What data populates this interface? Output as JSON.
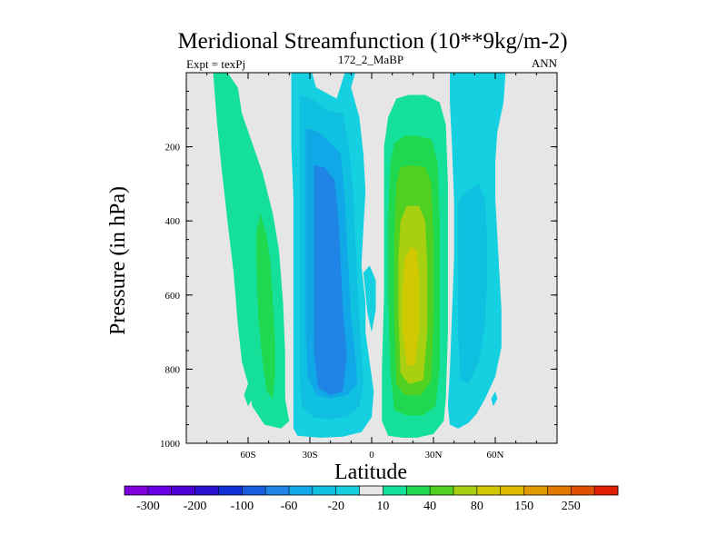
{
  "chart_data": {
    "type": "filled-contour",
    "title": "Meridional Streamfunction (10**9kg/m-2)",
    "subtitle_left": "Expt = texPj",
    "subtitle_center": "172_2_MaBP",
    "subtitle_right": "ANN",
    "xlabel": "Latitude",
    "ylabel": "Pressure (in hPa)",
    "xlim": [
      -90,
      90
    ],
    "ylim": [
      1000,
      0
    ],
    "x_ticks": [
      {
        "value": -60,
        "label": "60S"
      },
      {
        "value": -30,
        "label": "30S"
      },
      {
        "value": 0,
        "label": "0"
      },
      {
        "value": 30,
        "label": "30N"
      },
      {
        "value": 60,
        "label": "60N"
      }
    ],
    "y_ticks": [
      {
        "value": 200,
        "label": "200"
      },
      {
        "value": 400,
        "label": "400"
      },
      {
        "value": 600,
        "label": "600"
      },
      {
        "value": 800,
        "label": "800"
      },
      {
        "value": 1000,
        "label": "1000"
      }
    ],
    "background_color": "#e6e6e6",
    "colorbar": {
      "colors": [
        "#8000e0",
        "#6a00e6",
        "#4b00d6",
        "#2a10d0",
        "#1030d8",
        "#1a5ce0",
        "#1f84e6",
        "#10a8e6",
        "#10c0e0",
        "#14d0e0",
        "#e6e6e6",
        "#14e09a",
        "#20d850",
        "#50d020",
        "#a8d010",
        "#d0c800",
        "#e0b800",
        "#e09a00",
        "#e07800",
        "#e05000",
        "#e02000"
      ],
      "labels": [
        {
          "after_box": 1,
          "text": "-300"
        },
        {
          "after_box": 3,
          "text": "-200"
        },
        {
          "after_box": 5,
          "text": "-100"
        },
        {
          "after_box": 7,
          "text": "-60"
        },
        {
          "after_box": 9,
          "text": "-20"
        },
        {
          "after_box": 11,
          "text": "10"
        },
        {
          "after_box": 13,
          "text": "40"
        },
        {
          "after_box": 15,
          "text": "80"
        },
        {
          "after_box": 17,
          "text": "150"
        },
        {
          "after_box": 19,
          "text": "250"
        }
      ]
    },
    "contours": [
      {
        "level": "15",
        "color": "#14e09a",
        "points": [
          [
            -77,
            0
          ],
          [
            -70,
            0
          ],
          [
            -65,
            40
          ],
          [
            -63,
            110
          ],
          [
            -58,
            190
          ],
          [
            -53,
            270
          ],
          [
            -48,
            380
          ],
          [
            -45,
            480
          ],
          [
            -43,
            620
          ],
          [
            -42,
            760
          ],
          [
            -42,
            880
          ],
          [
            -40,
            940
          ],
          [
            -44,
            960
          ],
          [
            -52,
            950
          ],
          [
            -58,
            900
          ],
          [
            -60,
            840
          ],
          [
            -63,
            780
          ],
          [
            -65,
            680
          ],
          [
            -67,
            540
          ],
          [
            -70,
            400
          ],
          [
            -73,
            250
          ],
          [
            -75,
            140
          ]
        ]
      },
      {
        "level": "15",
        "color": "#14e09a",
        "points": [
          [
            -60,
            840
          ],
          [
            -58,
            880
          ],
          [
            -60,
            900
          ],
          [
            -62,
            870
          ]
        ]
      },
      {
        "level": "25",
        "color": "#20d850",
        "points": [
          [
            -54,
            380
          ],
          [
            -51,
            440
          ],
          [
            -49,
            520
          ],
          [
            -48,
            620
          ],
          [
            -47,
            720
          ],
          [
            -47,
            820
          ],
          [
            -48,
            880
          ],
          [
            -51,
            860
          ],
          [
            -53,
            780
          ],
          [
            -55,
            660
          ],
          [
            -56,
            520
          ],
          [
            -56,
            430
          ]
        ]
      },
      {
        "level": "-15",
        "color": "#14d0e0",
        "points": [
          [
            -39,
            0
          ],
          [
            -29,
            0
          ],
          [
            -27,
            40
          ],
          [
            -17,
            70
          ],
          [
            -13,
            0
          ],
          [
            -8,
            0
          ],
          [
            -10,
            40
          ],
          [
            -6,
            120
          ],
          [
            -4,
            220
          ],
          [
            -3,
            320
          ],
          [
            -4,
            420
          ],
          [
            -5,
            520
          ],
          [
            -3,
            620
          ],
          [
            -3,
            700
          ],
          [
            -1,
            780
          ],
          [
            1,
            860
          ],
          [
            0,
            930
          ],
          [
            -5,
            970
          ],
          [
            -14,
            982
          ],
          [
            -25,
            985
          ],
          [
            -36,
            980
          ],
          [
            -38,
            960
          ],
          [
            -38,
            880
          ],
          [
            -38,
            760
          ],
          [
            -38,
            620
          ],
          [
            -38,
            480
          ],
          [
            -38,
            340
          ],
          [
            -39,
            200
          ],
          [
            -39,
            80
          ]
        ]
      },
      {
        "level": "-25",
        "color": "#10c0e0",
        "points": [
          [
            -35,
            60
          ],
          [
            -29,
            70
          ],
          [
            -22,
            100
          ],
          [
            -14,
            110
          ],
          [
            -11,
            200
          ],
          [
            -9,
            320
          ],
          [
            -8,
            450
          ],
          [
            -7,
            560
          ],
          [
            -6,
            660
          ],
          [
            -5,
            760
          ],
          [
            -4,
            840
          ],
          [
            -6,
            900
          ],
          [
            -12,
            930
          ],
          [
            -20,
            935
          ],
          [
            -28,
            930
          ],
          [
            -34,
            900
          ],
          [
            -35,
            820
          ],
          [
            -35,
            680
          ],
          [
            -35,
            520
          ],
          [
            -35,
            340
          ],
          [
            -35,
            180
          ]
        ]
      },
      {
        "level": "-35",
        "color": "#10a8e6",
        "points": [
          [
            -32,
            150
          ],
          [
            -26,
            160
          ],
          [
            -20,
            190
          ],
          [
            -15,
            220
          ],
          [
            -13,
            340
          ],
          [
            -12,
            460
          ],
          [
            -11,
            560
          ],
          [
            -10,
            660
          ],
          [
            -8,
            760
          ],
          [
            -7,
            840
          ],
          [
            -12,
            870
          ],
          [
            -20,
            880
          ],
          [
            -27,
            870
          ],
          [
            -31,
            820
          ],
          [
            -32,
            700
          ],
          [
            -32,
            560
          ],
          [
            -32,
            420
          ],
          [
            -32,
            280
          ]
        ]
      },
      {
        "level": "-45",
        "color": "#1f84e6",
        "points": [
          [
            -28,
            250
          ],
          [
            -23,
            255
          ],
          [
            -18,
            290
          ],
          [
            -16,
            400
          ],
          [
            -15,
            520
          ],
          [
            -14,
            640
          ],
          [
            -12,
            760
          ],
          [
            -14,
            860
          ],
          [
            -20,
            870
          ],
          [
            -26,
            850
          ],
          [
            -28,
            760
          ],
          [
            -28,
            620
          ],
          [
            -28,
            480
          ],
          [
            -28,
            360
          ]
        ]
      },
      {
        "level": "-15",
        "color": "#14d0e0",
        "points": [
          [
            -4,
            540
          ],
          [
            -1,
            520
          ],
          [
            2,
            560
          ],
          [
            2,
            640
          ],
          [
            0,
            700
          ],
          [
            -2,
            650
          ]
        ]
      },
      {
        "level": "15",
        "color": "#14e09a",
        "points": [
          [
            6,
            200
          ],
          [
            8,
            120
          ],
          [
            12,
            70
          ],
          [
            18,
            60
          ],
          [
            26,
            60
          ],
          [
            33,
            80
          ],
          [
            36,
            140
          ],
          [
            37,
            300
          ],
          [
            37,
            500
          ],
          [
            37,
            700
          ],
          [
            36,
            880
          ],
          [
            35,
            940
          ],
          [
            30,
            975
          ],
          [
            22,
            985
          ],
          [
            15,
            985
          ],
          [
            8,
            980
          ],
          [
            5,
            940
          ],
          [
            5,
            800
          ],
          [
            6,
            600
          ],
          [
            6,
            400
          ]
        ]
      },
      {
        "level": "25",
        "color": "#20d850",
        "points": [
          [
            9,
            250
          ],
          [
            11,
            190
          ],
          [
            16,
            170
          ],
          [
            22,
            170
          ],
          [
            29,
            180
          ],
          [
            32,
            240
          ],
          [
            33,
            400
          ],
          [
            33,
            600
          ],
          [
            33,
            800
          ],
          [
            31,
            900
          ],
          [
            25,
            925
          ],
          [
            17,
            925
          ],
          [
            11,
            910
          ],
          [
            9,
            800
          ],
          [
            8,
            600
          ],
          [
            8,
            400
          ]
        ]
      },
      {
        "level": "35",
        "color": "#50d020",
        "points": [
          [
            12,
            300
          ],
          [
            14,
            255
          ],
          [
            20,
            250
          ],
          [
            26,
            255
          ],
          [
            29,
            300
          ],
          [
            30,
            450
          ],
          [
            30,
            650
          ],
          [
            29,
            830
          ],
          [
            24,
            870
          ],
          [
            16,
            870
          ],
          [
            12,
            840
          ],
          [
            11,
            650
          ],
          [
            11,
            450
          ]
        ]
      },
      {
        "level": "45",
        "color": "#a8d010",
        "points": [
          [
            14,
            400
          ],
          [
            17,
            360
          ],
          [
            23,
            360
          ],
          [
            26,
            400
          ],
          [
            27,
            520
          ],
          [
            27,
            700
          ],
          [
            25,
            830
          ],
          [
            18,
            840
          ],
          [
            14,
            810
          ],
          [
            13,
            650
          ],
          [
            13,
            500
          ]
        ]
      },
      {
        "level": "55",
        "color": "#d0c800",
        "points": [
          [
            16,
            500
          ],
          [
            19,
            470
          ],
          [
            22,
            480
          ],
          [
            23,
            560
          ],
          [
            23,
            700
          ],
          [
            21,
            790
          ],
          [
            17,
            790
          ],
          [
            15,
            700
          ],
          [
            15,
            580
          ]
        ]
      },
      {
        "level": "-15",
        "color": "#14d0e0",
        "points": [
          [
            38,
            0
          ],
          [
            65,
            0
          ],
          [
            64,
            80
          ],
          [
            61,
            160
          ],
          [
            60,
            240
          ],
          [
            60,
            340
          ],
          [
            61,
            440
          ],
          [
            62,
            540
          ],
          [
            63,
            640
          ],
          [
            63,
            740
          ],
          [
            60,
            820
          ],
          [
            55,
            880
          ],
          [
            51,
            920
          ],
          [
            47,
            945
          ],
          [
            42,
            960
          ],
          [
            38,
            950
          ],
          [
            37,
            900
          ],
          [
            38,
            800
          ],
          [
            39,
            650
          ],
          [
            40,
            500
          ],
          [
            40,
            350
          ],
          [
            39,
            200
          ],
          [
            38,
            80
          ]
        ]
      },
      {
        "level": "-25",
        "color": "#10c0e0",
        "points": [
          [
            42,
            350
          ],
          [
            46,
            320
          ],
          [
            52,
            300
          ],
          [
            55,
            340
          ],
          [
            56,
            440
          ],
          [
            56,
            560
          ],
          [
            55,
            680
          ],
          [
            52,
            780
          ],
          [
            47,
            840
          ],
          [
            43,
            830
          ],
          [
            42,
            700
          ],
          [
            42,
            560
          ],
          [
            42,
            440
          ]
        ]
      },
      {
        "level": "-15",
        "color": "#14d0e0",
        "points": [
          [
            58,
            880
          ],
          [
            60,
            860
          ],
          [
            61,
            880
          ],
          [
            59,
            900
          ]
        ]
      }
    ]
  }
}
